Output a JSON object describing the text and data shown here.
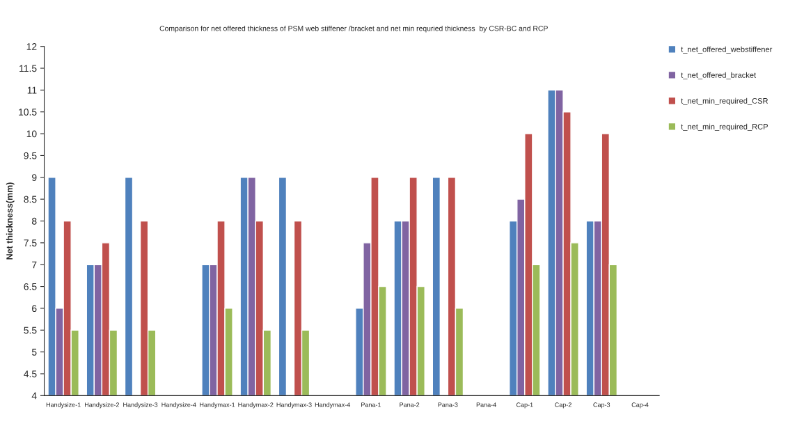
{
  "chart_data": {
    "type": "bar",
    "title": "Comparison for net offered thickness of PSM web stiffener /bracket and net min requried thickness  by CSR-BC and RCP",
    "ylabel": "Net thickness(mm)",
    "categories": [
      "Handysize-1",
      "Handysize-2",
      "Handysize-3",
      "Handysize-4",
      "Handymax-1",
      "Handymax-2",
      "Handymax-3",
      "Handymax-4",
      "Pana-1",
      "Pana-2",
      "Pana-3",
      "Pana-4",
      "Cap-1",
      "Cap-2",
      "Cap-3",
      "Cap-4"
    ],
    "series": [
      {
        "name": "t_net_offered_webstiffener",
        "color": "#4f81bd",
        "values": [
          9,
          7,
          9,
          null,
          7,
          9,
          9,
          null,
          6,
          8,
          9,
          null,
          8,
          11,
          8,
          null
        ]
      },
      {
        "name": "t_net_offered_bracket",
        "color": "#8064a2",
        "values": [
          6,
          7,
          null,
          null,
          7,
          9,
          null,
          null,
          7.5,
          8,
          null,
          null,
          8.5,
          11,
          8,
          null
        ]
      },
      {
        "name": "t_net_min_required_CSR",
        "color": "#c0504d",
        "values": [
          8,
          7.5,
          8,
          null,
          8,
          8,
          8,
          null,
          9,
          9,
          9,
          null,
          10,
          10.5,
          10,
          null
        ]
      },
      {
        "name": "t_net_min_required_RCP",
        "color": "#9bbb59",
        "values": [
          5.5,
          5.5,
          5.5,
          null,
          6,
          5.5,
          5.5,
          null,
          6.5,
          6.5,
          6,
          null,
          7,
          7.5,
          7,
          null
        ]
      }
    ],
    "ylim": [
      4,
      12
    ],
    "yticks": [
      4,
      4.5,
      5,
      5.5,
      6,
      6.5,
      7,
      7.5,
      8,
      8.5,
      9,
      9.5,
      10,
      10.5,
      11,
      11.5,
      12
    ],
    "grid": false,
    "legend": "top right"
  }
}
